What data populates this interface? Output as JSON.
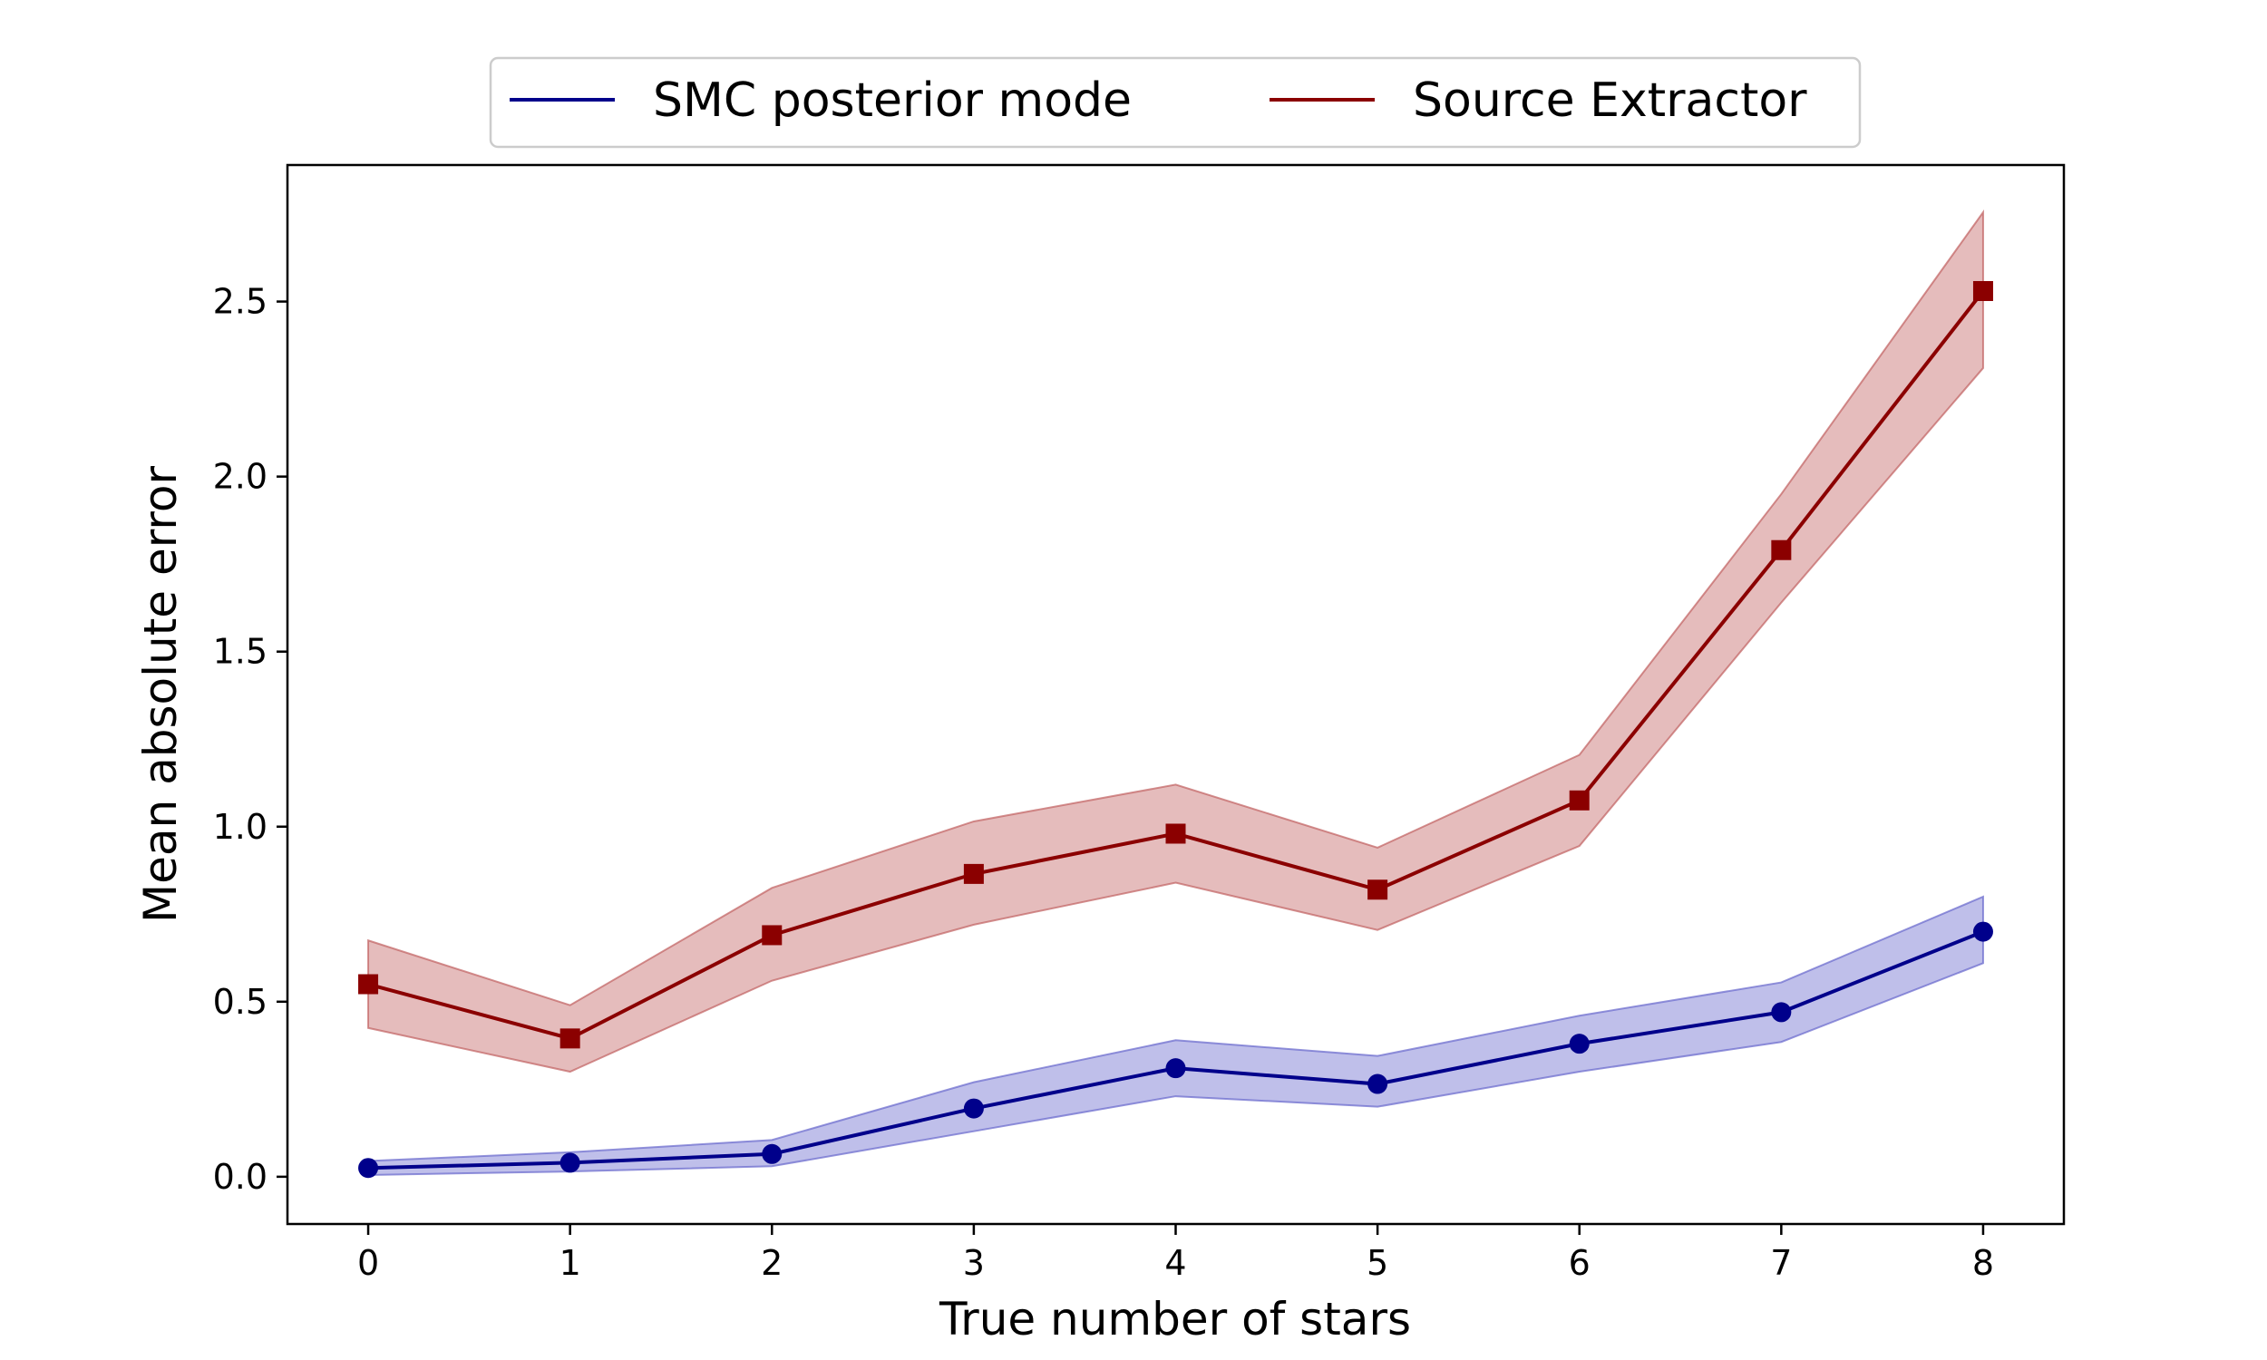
{
  "chart_data": {
    "type": "line",
    "xlabel": "True number of stars",
    "ylabel": "Mean absolute error",
    "x": [
      0,
      1,
      2,
      3,
      4,
      5,
      6,
      7,
      8
    ],
    "xlim": [
      -0.4,
      8.4
    ],
    "ylim": [
      -0.135,
      2.89
    ],
    "xticks": [
      "0",
      "1",
      "2",
      "3",
      "4",
      "5",
      "6",
      "7",
      "8"
    ],
    "yticks": [
      "0.0",
      "0.5",
      "1.0",
      "1.5",
      "2.0",
      "2.5"
    ],
    "grid": false,
    "legend": {
      "placement": "top-center",
      "columns": 2
    },
    "series": [
      {
        "name": "SMC posterior mode",
        "color": "#00008b",
        "band_color": "#6666cc",
        "marker": "circle",
        "values": [
          0.025,
          0.04,
          0.065,
          0.195,
          0.31,
          0.265,
          0.38,
          0.47,
          0.7
        ],
        "lower": [
          0.005,
          0.015,
          0.03,
          0.13,
          0.23,
          0.2,
          0.3,
          0.385,
          0.61
        ],
        "upper": [
          0.045,
          0.07,
          0.105,
          0.27,
          0.39,
          0.345,
          0.46,
          0.555,
          0.8
        ]
      },
      {
        "name": "Source Extractor",
        "color": "#8b0000",
        "band_color": "#c06060",
        "marker": "square",
        "values": [
          0.55,
          0.395,
          0.69,
          0.865,
          0.98,
          0.82,
          1.075,
          1.79,
          2.53
        ],
        "lower": [
          0.425,
          0.3,
          0.56,
          0.72,
          0.84,
          0.705,
          0.945,
          1.64,
          2.31
        ],
        "upper": [
          0.675,
          0.49,
          0.825,
          1.015,
          1.12,
          0.94,
          1.205,
          1.95,
          2.755
        ]
      }
    ]
  }
}
